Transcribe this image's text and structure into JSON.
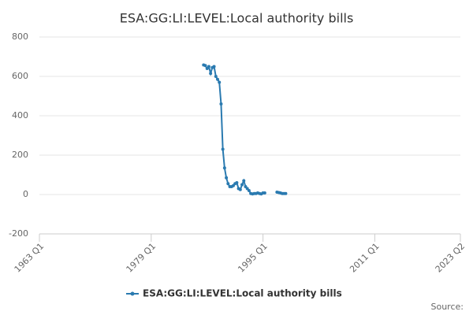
{
  "chart_data": {
    "type": "line",
    "title": "ESA:GG:LI:LEVEL:Local authority bills",
    "x": [
      "1986 Q3",
      "1986 Q4",
      "1987 Q1",
      "1987 Q2",
      "1987 Q3",
      "1987 Q4",
      "1988 Q1",
      "1988 Q2",
      "1988 Q3",
      "1988 Q4",
      "1989 Q1",
      "1989 Q2",
      "1989 Q3",
      "1989 Q4",
      "1990 Q1",
      "1990 Q2",
      "1990 Q3",
      "1990 Q4",
      "1991 Q1",
      "1991 Q2",
      "1991 Q3",
      "1991 Q4",
      "1992 Q1",
      "1992 Q2",
      "1992 Q3",
      "1992 Q4",
      "1993 Q1",
      "1993 Q2",
      "1993 Q3",
      "1993 Q4",
      "1994 Q1",
      "1994 Q2",
      "1994 Q3",
      "1994 Q4",
      "1995 Q1",
      "1995 Q2",
      "1995 Q3",
      "1995 Q4",
      "1996 Q1",
      "1996 Q2",
      "1996 Q3",
      "1996 Q4",
      "1997 Q1",
      "1997 Q2",
      "1997 Q3",
      "1997 Q4",
      "1998 Q1",
      "1998 Q2"
    ],
    "series": [
      {
        "name": "ESA:GG:LI:LEVEL:Local authority bills",
        "color": "#2a7ab0",
        "values": [
          658,
          655,
          640,
          650,
          615,
          645,
          650,
          600,
          585,
          570,
          460,
          230,
          135,
          85,
          55,
          40,
          40,
          45,
          55,
          60,
          30,
          25,
          50,
          70,
          40,
          30,
          20,
          5,
          3,
          5,
          5,
          8,
          5,
          3,
          8,
          8,
          null,
          null,
          null,
          null,
          null,
          null,
          12,
          10,
          8,
          5,
          5,
          5
        ]
      }
    ],
    "xlim": [
      "1963 Q1",
      "2023 Q2"
    ],
    "xticks": [
      "1963 Q1",
      "1979 Q1",
      "1995 Q1",
      "2011 Q1",
      "2023 Q2"
    ],
    "ylim": [
      -200,
      800
    ],
    "yticks": [
      -200,
      0,
      200,
      400,
      600,
      800
    ],
    "grid": true,
    "source": "Source:"
  }
}
